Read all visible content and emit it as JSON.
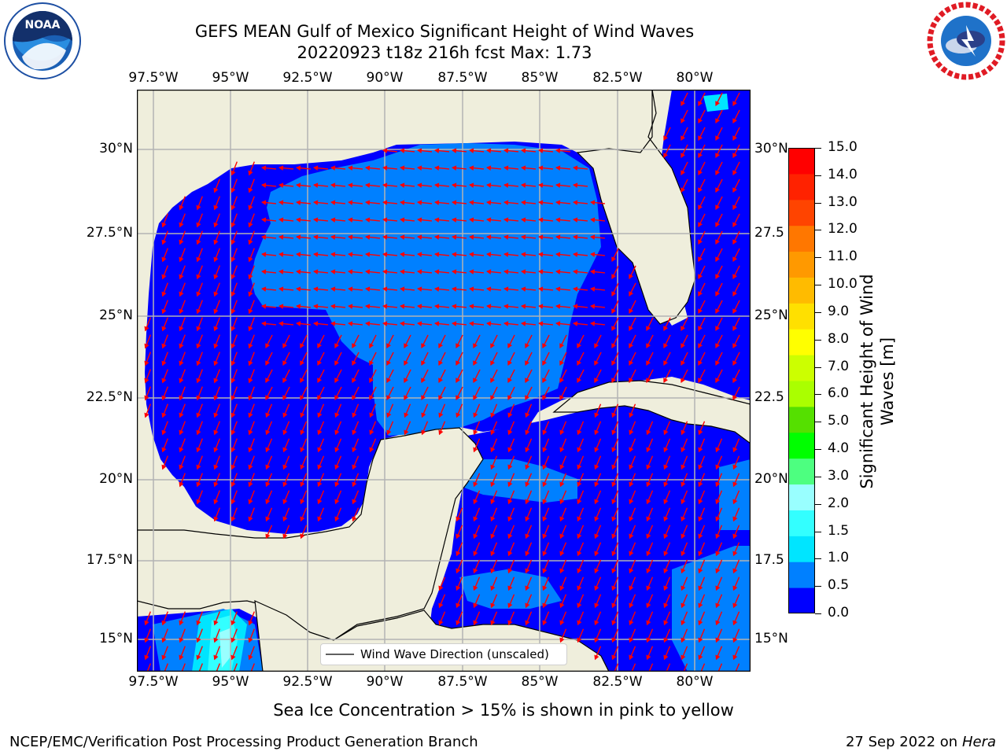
{
  "title_line1": "GEFS MEAN Gulf of Mexico Significant Height of Wind Waves",
  "title_line2": "20220923 t18z 216h fcst   Max: 1.73",
  "lon_ticks": [
    "97.5°W",
    "95°W",
    "92.5°W",
    "90°W",
    "87.5°W",
    "85°W",
    "82.5°W",
    "80°W"
  ],
  "lat_ticks_left": [
    "30°N",
    "27.5°N",
    "25°N",
    "22.5°N",
    "20°N",
    "17.5°N",
    "15°N"
  ],
  "lat_ticks_right": [
    "30°N",
    "27.5",
    "25°N",
    "22.5",
    "20°N",
    "17.5",
    "15°N"
  ],
  "legend_label": "Wind Wave Direction (unscaled)",
  "colorbar": {
    "label_line1": "Significant Height of Wind",
    "label_line2": "Waves [m]",
    "ticks": [
      "15.0",
      "14.0",
      "13.0",
      "12.0",
      "11.0",
      "10.0",
      "9.0",
      "8.0",
      "7.0",
      "6.0",
      "5.0",
      "4.0",
      "3.0",
      "2.0",
      "1.5",
      "1.0",
      "0.5",
      "0.0"
    ],
    "colors_bottom_to_top": [
      "#0000ff",
      "#0080ff",
      "#00e5ff",
      "#33ffff",
      "#99ffff",
      "#4dff80",
      "#00ff00",
      "#55e000",
      "#aaff00",
      "#ccff00",
      "#ffff00",
      "#ffe000",
      "#ffbb00",
      "#ff9900",
      "#ff7700",
      "#ff4400",
      "#ff2200",
      "#ff0000"
    ]
  },
  "map_colors": {
    "land": "#efeedc",
    "sea_low": "#0000ff",
    "sea_mid": "#0080ff",
    "sea_high": "#00e5ff",
    "arrow": "#ff0000",
    "grid": "#b3b3b3"
  },
  "sea_ice_note": "Sea Ice Concentration > 15% is shown in pink to yellow",
  "footer_left": "NCEP/EMC/Verification Post Processing Product Generation Branch",
  "footer_right_date": "27 Sep 2022 on",
  "footer_right_host": "Hera",
  "logo_left": {
    "name": "noaa-logo",
    "text": "NOAA"
  },
  "logo_right": {
    "name": "nws-logo"
  }
}
